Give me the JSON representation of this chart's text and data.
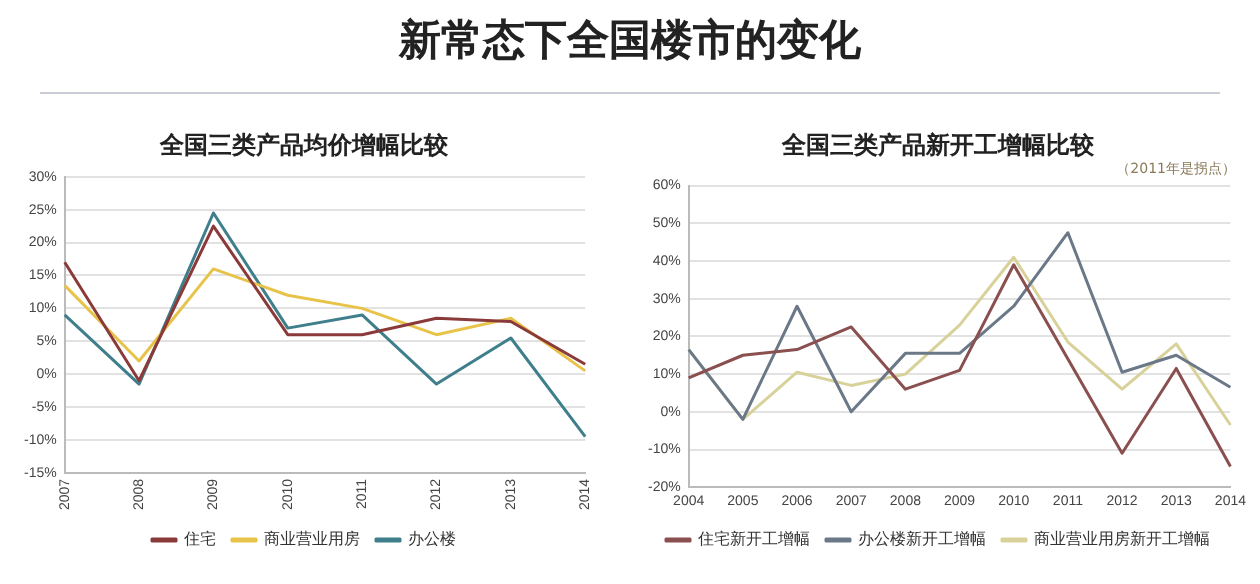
{
  "chart_data": [
    {
      "type": "other",
      "title": "新常态下全国楼市的变化"
    },
    {
      "type": "line",
      "title": "全国三类产品均价增幅比较",
      "categories": [
        "2007",
        "2008",
        "2009",
        "2010",
        "2011",
        "2012",
        "2013",
        "2014"
      ],
      "series": [
        {
          "name": "住宅",
          "color": "#8b3a3a",
          "values": [
            17,
            -1,
            22.5,
            6,
            6,
            8.5,
            8,
            1.5
          ]
        },
        {
          "name": "商业营业用房",
          "color": "#e8c34a",
          "values": [
            13.5,
            2,
            16,
            12,
            10,
            6,
            8.5,
            0.5
          ]
        },
        {
          "name": "办公楼",
          "color": "#3f7f8c",
          "values": [
            9,
            -1.5,
            24.5,
            7,
            9,
            -1.5,
            5.5,
            -9.5
          ]
        }
      ],
      "ylim": [
        -15,
        30
      ],
      "yticks": [
        {
          "value": -15,
          "label": "-15%"
        },
        {
          "value": -10,
          "label": "-10%"
        },
        {
          "value": -5,
          "label": "-5%"
        },
        {
          "value": 0,
          "label": "0%"
        },
        {
          "value": 5,
          "label": "5%"
        },
        {
          "value": 10,
          "label": "10%"
        },
        {
          "value": 15,
          "label": "15%"
        },
        {
          "value": 20,
          "label": "20%"
        },
        {
          "value": 25,
          "label": "25%"
        },
        {
          "value": 30,
          "label": "30%"
        }
      ],
      "grid": "y",
      "legend": "bottom",
      "marker": "none",
      "line_style": "solid"
    },
    {
      "type": "line",
      "title": "全国三类产品新开工增幅比较",
      "subtitle": "（2011年是拐点）",
      "categories": [
        "2004",
        "2005",
        "2006",
        "2007",
        "2008",
        "2009",
        "2010",
        "2011",
        "2012",
        "2013",
        "2014"
      ],
      "series": [
        {
          "name": "住宅新开工增幅",
          "color": "#8a4f4f",
          "values": [
            9,
            15,
            16.5,
            22.5,
            6,
            11,
            39,
            14,
            -11,
            11.5,
            -14.5
          ]
        },
        {
          "name": "办公楼新开工增幅",
          "color": "#6b7888",
          "values": [
            16.5,
            -2,
            28,
            0,
            15.5,
            15.5,
            28,
            47.5,
            10.5,
            15,
            6.5
          ]
        },
        {
          "name": "商业营业用房新开工增幅",
          "color": "#d8d29a",
          "values": [
            16.5,
            -2,
            10.5,
            7,
            10,
            23,
            41,
            18.5,
            6,
            18,
            -3.5
          ]
        }
      ],
      "ylim": [
        -20,
        60
      ],
      "yticks": [
        {
          "value": -20,
          "label": "-20%"
        },
        {
          "value": -10,
          "label": "-10%"
        },
        {
          "value": 0,
          "label": "0%"
        },
        {
          "value": 10,
          "label": "10%"
        },
        {
          "value": 20,
          "label": "20%"
        },
        {
          "value": 30,
          "label": "30%"
        },
        {
          "value": 40,
          "label": "40%"
        },
        {
          "value": 50,
          "label": "50%"
        },
        {
          "value": 60,
          "label": "60%"
        }
      ],
      "grid": "y",
      "legend": "bottom",
      "marker": "none",
      "line_style": "solid"
    }
  ]
}
